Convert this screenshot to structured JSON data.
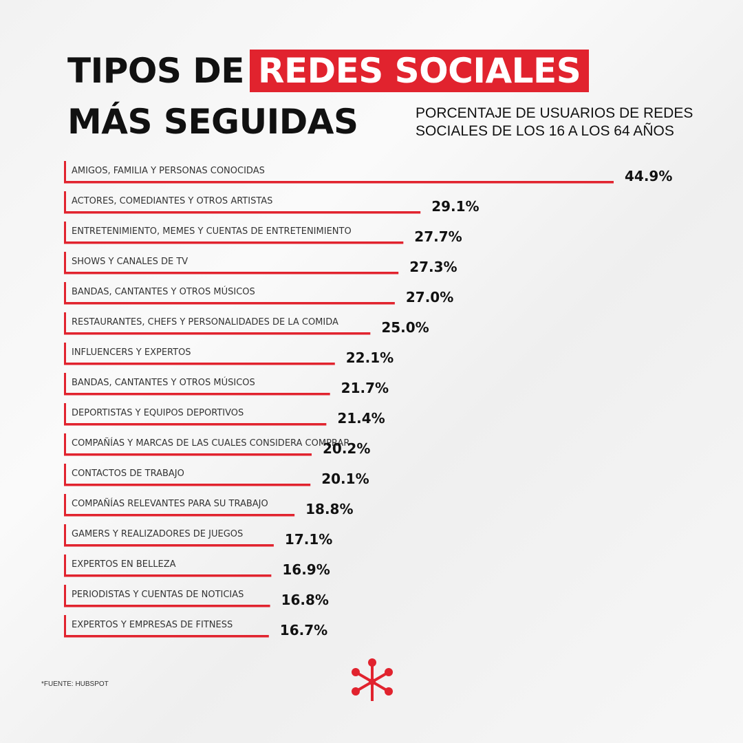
{
  "title": {
    "line1_plain": "TIPOS DE",
    "line1_highlight": "REDES SOCIALES",
    "line2": "MÁS SEGUIDAS"
  },
  "subtitle": {
    "line1": "PORCENTAJE DE USUARIOS DE REDES",
    "line2": "SOCIALES DE LOS 16 A LOS 64 AÑOS"
  },
  "source": "*FUENTE: HUBSPOT",
  "colors": {
    "accent": "#e1232e",
    "text": "#111111"
  },
  "logo_icon": "network-nodes-icon",
  "chart_data": {
    "type": "bar",
    "orientation": "horizontal",
    "categories": [
      "AMIGOS, FAMILIA Y PERSONAS CONOCIDAS",
      "ACTORES, COMEDIANTES Y OTROS ARTISTAS",
      "ENTRETENIMIENTO, MEMES Y CUENTAS DE ENTRETENIMIENTO",
      "SHOWS Y CANALES DE TV",
      "BANDAS, CANTANTES Y OTROS MÚSICOS",
      "RESTAURANTES, CHEFS Y PERSONALIDADES DE LA COMIDA",
      "INFLUENCERS Y EXPERTOS",
      "BANDAS, CANTANTES Y OTROS MÚSICOS",
      "DEPORTISTAS Y EQUIPOS DEPORTIVOS",
      "COMPAÑÍAS Y MARCAS DE LAS CUALES CONSIDERA COMPRAR",
      "CONTACTOS DE TRABAJO",
      "COMPAÑÍAS RELEVANTES PARA SU TRABAJO",
      "GAMERS Y REALIZADORES DE JUEGOS",
      "EXPERTOS EN BELLEZA",
      "PERIODISTAS Y CUENTAS DE NOTICIAS",
      "EXPERTOS Y EMPRESAS DE FITNESS"
    ],
    "values": [
      44.9,
      29.1,
      27.7,
      27.3,
      27.0,
      25.0,
      22.1,
      21.7,
      21.4,
      20.2,
      20.1,
      18.8,
      17.1,
      16.9,
      16.8,
      16.7
    ],
    "value_labels": [
      "44.9%",
      "29.1%",
      "27.7%",
      "27.3%",
      "27.0%",
      "25.0%",
      "22.1%",
      "21.7%",
      "21.4%",
      "20.2%",
      "20.1%",
      "18.8%",
      "17.1%",
      "16.9%",
      "16.8%",
      "16.7%"
    ],
    "unit": "%",
    "color": "#e1232e"
  }
}
